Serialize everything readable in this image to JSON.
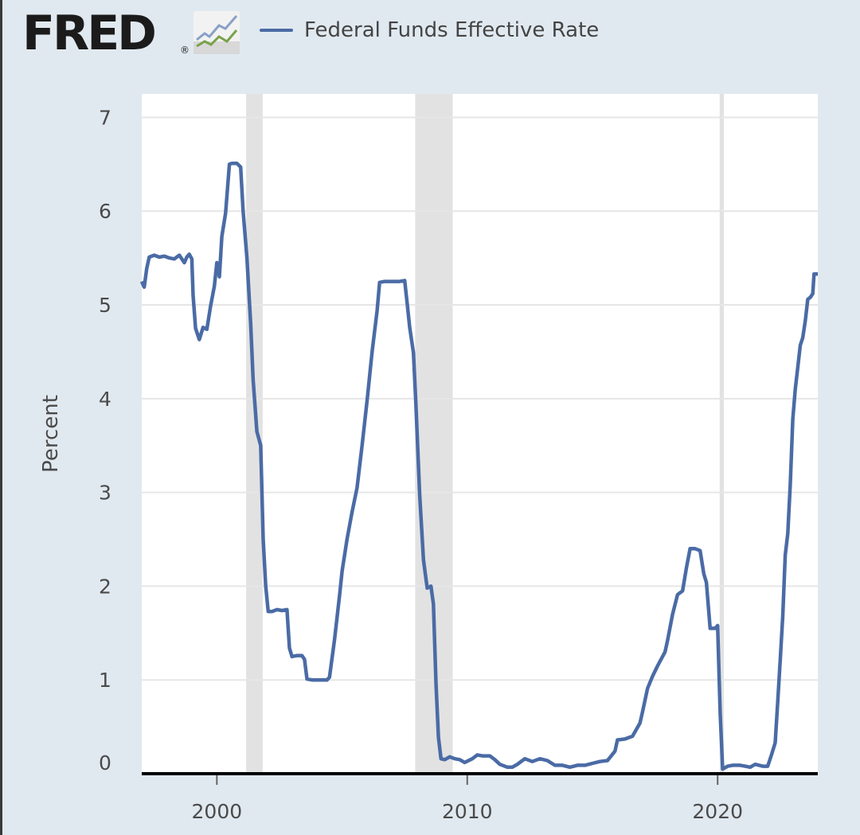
{
  "brand": {
    "logo_text": "FRED",
    "registered_mark": "®",
    "icon": "line-chart-logo-icon"
  },
  "colors": {
    "background": "#e1e9f0",
    "plot_background": "#ffffff",
    "series": "#4a6ba5",
    "recession": "#e2e2e2",
    "grid": "#e6e6e6",
    "axis": "#000000"
  },
  "chart_data": {
    "type": "line",
    "title": "",
    "xlabel": "",
    "ylabel": "Percent",
    "xlim": [
      1997.0,
      2024.0
    ],
    "ylim": [
      0,
      7
    ],
    "yticks": [
      0,
      1,
      2,
      3,
      4,
      5,
      6,
      7
    ],
    "xticks": [
      2000,
      2010,
      2020
    ],
    "grid": "horizontal",
    "legend_position": "top",
    "recessions": [
      [
        2001.17,
        2001.83
      ],
      [
        2007.92,
        2009.42
      ],
      [
        2020.08,
        2020.25
      ]
    ],
    "series": [
      {
        "name": "Federal Funds Effective Rate",
        "points": [
          [
            1997.0,
            5.25
          ],
          [
            1997.1,
            5.19
          ],
          [
            1997.2,
            5.39
          ],
          [
            1997.3,
            5.51
          ],
          [
            1997.5,
            5.53
          ],
          [
            1997.7,
            5.51
          ],
          [
            1997.9,
            5.52
          ],
          [
            1998.1,
            5.5
          ],
          [
            1998.3,
            5.49
          ],
          [
            1998.5,
            5.53
          ],
          [
            1998.7,
            5.45
          ],
          [
            1998.8,
            5.51
          ],
          [
            1998.9,
            5.54
          ],
          [
            1999.0,
            5.49
          ],
          [
            1999.05,
            5.1
          ],
          [
            1999.15,
            4.75
          ],
          [
            1999.3,
            4.63
          ],
          [
            1999.45,
            4.76
          ],
          [
            1999.6,
            4.74
          ],
          [
            1999.75,
            4.99
          ],
          [
            1999.9,
            5.2
          ],
          [
            2000.0,
            5.45
          ],
          [
            2000.1,
            5.3
          ],
          [
            2000.2,
            5.73
          ],
          [
            2000.35,
            5.98
          ],
          [
            2000.5,
            6.5
          ],
          [
            2000.6,
            6.51
          ],
          [
            2000.8,
            6.51
          ],
          [
            2000.95,
            6.47
          ],
          [
            2001.05,
            6.0
          ],
          [
            2001.2,
            5.5
          ],
          [
            2001.35,
            4.8
          ],
          [
            2001.45,
            4.2
          ],
          [
            2001.6,
            3.65
          ],
          [
            2001.75,
            3.5
          ],
          [
            2001.85,
            2.5
          ],
          [
            2001.95,
            2.0
          ],
          [
            2002.05,
            1.73
          ],
          [
            2002.2,
            1.73
          ],
          [
            2002.4,
            1.75
          ],
          [
            2002.6,
            1.74
          ],
          [
            2002.8,
            1.75
          ],
          [
            2002.9,
            1.34
          ],
          [
            2003.0,
            1.25
          ],
          [
            2003.2,
            1.26
          ],
          [
            2003.4,
            1.26
          ],
          [
            2003.5,
            1.22
          ],
          [
            2003.6,
            1.01
          ],
          [
            2003.8,
            1.0
          ],
          [
            2004.0,
            1.0
          ],
          [
            2004.2,
            1.0
          ],
          [
            2004.4,
            1.0
          ],
          [
            2004.5,
            1.03
          ],
          [
            2004.7,
            1.43
          ],
          [
            2004.9,
            1.9
          ],
          [
            2005.0,
            2.16
          ],
          [
            2005.2,
            2.5
          ],
          [
            2005.4,
            2.79
          ],
          [
            2005.6,
            3.05
          ],
          [
            2005.8,
            3.5
          ],
          [
            2006.0,
            3.98
          ],
          [
            2006.2,
            4.5
          ],
          [
            2006.4,
            4.94
          ],
          [
            2006.5,
            5.24
          ],
          [
            2006.7,
            5.25
          ],
          [
            2006.9,
            5.25
          ],
          [
            2007.1,
            5.25
          ],
          [
            2007.3,
            5.25
          ],
          [
            2007.5,
            5.26
          ],
          [
            2007.6,
            5.02
          ],
          [
            2007.7,
            4.76
          ],
          [
            2007.85,
            4.49
          ],
          [
            2007.95,
            3.94
          ],
          [
            2008.1,
            2.98
          ],
          [
            2008.25,
            2.28
          ],
          [
            2008.4,
            1.98
          ],
          [
            2008.55,
            2.0
          ],
          [
            2008.65,
            1.81
          ],
          [
            2008.75,
            0.97
          ],
          [
            2008.85,
            0.39
          ],
          [
            2008.95,
            0.16
          ],
          [
            2009.1,
            0.15
          ],
          [
            2009.3,
            0.18
          ],
          [
            2009.5,
            0.16
          ],
          [
            2009.7,
            0.15
          ],
          [
            2009.9,
            0.12
          ],
          [
            2010.2,
            0.16
          ],
          [
            2010.4,
            0.2
          ],
          [
            2010.6,
            0.19
          ],
          [
            2010.9,
            0.19
          ],
          [
            2011.1,
            0.15
          ],
          [
            2011.3,
            0.1
          ],
          [
            2011.6,
            0.07
          ],
          [
            2011.8,
            0.07
          ],
          [
            2012.0,
            0.1
          ],
          [
            2012.3,
            0.16
          ],
          [
            2012.6,
            0.13
          ],
          [
            2012.9,
            0.16
          ],
          [
            2013.2,
            0.14
          ],
          [
            2013.5,
            0.09
          ],
          [
            2013.8,
            0.09
          ],
          [
            2014.1,
            0.07
          ],
          [
            2014.4,
            0.09
          ],
          [
            2014.7,
            0.09
          ],
          [
            2015.0,
            0.11
          ],
          [
            2015.3,
            0.13
          ],
          [
            2015.6,
            0.14
          ],
          [
            2015.9,
            0.24
          ],
          [
            2016.0,
            0.36
          ],
          [
            2016.3,
            0.37
          ],
          [
            2016.6,
            0.4
          ],
          [
            2016.9,
            0.54
          ],
          [
            2017.0,
            0.66
          ],
          [
            2017.2,
            0.91
          ],
          [
            2017.4,
            1.04
          ],
          [
            2017.6,
            1.15
          ],
          [
            2017.9,
            1.3
          ],
          [
            2018.0,
            1.42
          ],
          [
            2018.2,
            1.7
          ],
          [
            2018.4,
            1.91
          ],
          [
            2018.6,
            1.95
          ],
          [
            2018.75,
            2.19
          ],
          [
            2018.9,
            2.4
          ],
          [
            2019.1,
            2.4
          ],
          [
            2019.3,
            2.38
          ],
          [
            2019.45,
            2.13
          ],
          [
            2019.55,
            2.04
          ],
          [
            2019.7,
            1.55
          ],
          [
            2019.9,
            1.55
          ],
          [
            2020.0,
            1.58
          ],
          [
            2020.1,
            0.65
          ],
          [
            2020.2,
            0.05
          ],
          [
            2020.4,
            0.08
          ],
          [
            2020.6,
            0.09
          ],
          [
            2020.9,
            0.09
          ],
          [
            2021.1,
            0.08
          ],
          [
            2021.3,
            0.07
          ],
          [
            2021.5,
            0.1
          ],
          [
            2021.8,
            0.08
          ],
          [
            2022.0,
            0.08
          ],
          [
            2022.15,
            0.2
          ],
          [
            2022.3,
            0.33
          ],
          [
            2022.4,
            0.77
          ],
          [
            2022.5,
            1.21
          ],
          [
            2022.6,
            1.68
          ],
          [
            2022.7,
            2.33
          ],
          [
            2022.8,
            2.56
          ],
          [
            2022.9,
            3.08
          ],
          [
            2023.0,
            3.78
          ],
          [
            2023.1,
            4.1
          ],
          [
            2023.2,
            4.33
          ],
          [
            2023.3,
            4.57
          ],
          [
            2023.4,
            4.65
          ],
          [
            2023.5,
            4.83
          ],
          [
            2023.6,
            5.06
          ],
          [
            2023.7,
            5.08
          ],
          [
            2023.8,
            5.12
          ],
          [
            2023.85,
            5.33
          ],
          [
            2024.0,
            5.33
          ]
        ]
      }
    ]
  }
}
